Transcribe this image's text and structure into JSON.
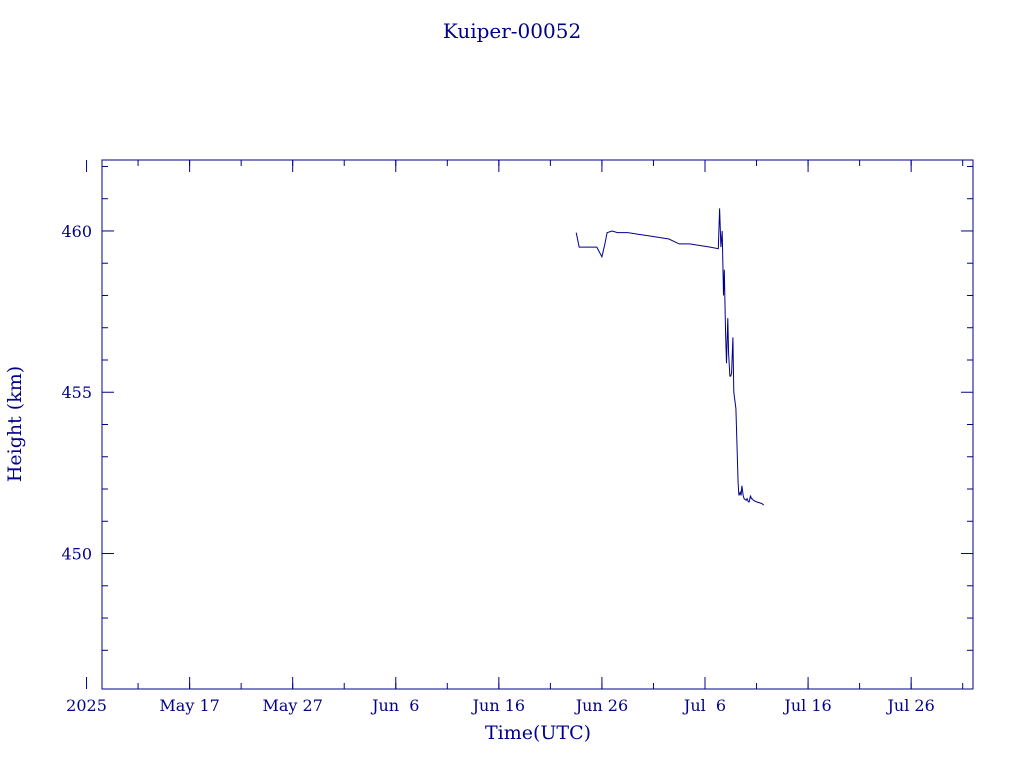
{
  "chart_data": {
    "type": "line",
    "title": "Kuiper-00052",
    "xlabel": "Time(UTC)",
    "ylabel": "Height (km)",
    "color": "#00008b",
    "grid": false,
    "ylim": [
      445.8,
      462.2
    ],
    "xlim": [
      "2025-05-08T12:00",
      "2025-08-01T00:00"
    ],
    "x_ticks": [
      {
        "date": "2025-05-07",
        "label": "2025"
      },
      {
        "date": "2025-05-17",
        "label": "May 17"
      },
      {
        "date": "2025-05-27",
        "label": "May 27"
      },
      {
        "date": "2025-06-06",
        "label": "Jun  6"
      },
      {
        "date": "2025-06-16",
        "label": "Jun 16"
      },
      {
        "date": "2025-06-26",
        "label": "Jun 26"
      },
      {
        "date": "2025-07-06",
        "label": "Jul  6"
      },
      {
        "date": "2025-07-16",
        "label": "Jul 16"
      },
      {
        "date": "2025-07-26",
        "label": "Jul 26"
      }
    ],
    "y_ticks": [
      {
        "value": 450,
        "label": "450"
      },
      {
        "value": 455,
        "label": "455"
      },
      {
        "value": 460,
        "label": "460"
      }
    ],
    "series": [
      {
        "x": [
          "2025-06-23T12:00",
          "2025-06-23T19:00",
          "2025-06-24T12:00",
          "2025-06-25T12:00",
          "2025-06-26T00:00",
          "2025-06-26T07:00",
          "2025-06-26T12:00",
          "2025-06-27T00:00",
          "2025-06-27T12:00",
          "2025-06-28T12:00",
          "2025-06-29T12:00",
          "2025-06-30T12:00",
          "2025-07-01T12:00",
          "2025-07-02T12:00",
          "2025-07-03T12:00",
          "2025-07-04T12:00",
          "2025-07-05T12:00",
          "2025-07-06T12:00",
          "2025-07-07T07:00",
          "2025-07-07T10:00",
          "2025-07-07T13:00",
          "2025-07-07T16:00",
          "2025-07-07T19:00",
          "2025-07-07T21:00",
          "2025-07-08T00:00",
          "2025-07-08T02:00",
          "2025-07-08T05:00",
          "2025-07-08T07:00",
          "2025-07-08T10:00",
          "2025-07-08T12:00",
          "2025-07-08T14:00",
          "2025-07-08T17:00",
          "2025-07-08T19:00",
          "2025-07-09T00:00",
          "2025-07-09T05:00",
          "2025-07-09T07:00",
          "2025-07-09T10:00",
          "2025-07-09T12:00",
          "2025-07-09T14:00",
          "2025-07-09T17:00",
          "2025-07-09T19:00",
          "2025-07-10T00:00",
          "2025-07-10T02:00",
          "2025-07-10T05:00",
          "2025-07-10T07:00",
          "2025-07-10T10:00",
          "2025-07-10T12:00",
          "2025-07-10T14:00",
          "2025-07-10T17:00",
          "2025-07-11T00:00",
          "2025-07-11T12:00",
          "2025-07-11T17:00"
        ],
        "y": [
          459.95,
          459.5,
          459.5,
          459.5,
          459.2,
          459.6,
          459.95,
          460.0,
          459.95,
          459.95,
          459.9,
          459.85,
          459.8,
          459.75,
          459.6,
          459.6,
          459.55,
          459.5,
          459.45,
          460.7,
          459.5,
          460.0,
          458.0,
          458.8,
          456.8,
          455.9,
          457.3,
          456.2,
          455.5,
          455.5,
          455.6,
          456.7,
          455.0,
          454.5,
          452.2,
          451.8,
          451.9,
          451.8,
          452.1,
          451.8,
          451.7,
          451.65,
          451.7,
          451.6,
          451.6,
          451.8,
          451.7,
          451.7,
          451.65,
          451.6,
          451.55,
          451.5
        ]
      }
    ]
  }
}
